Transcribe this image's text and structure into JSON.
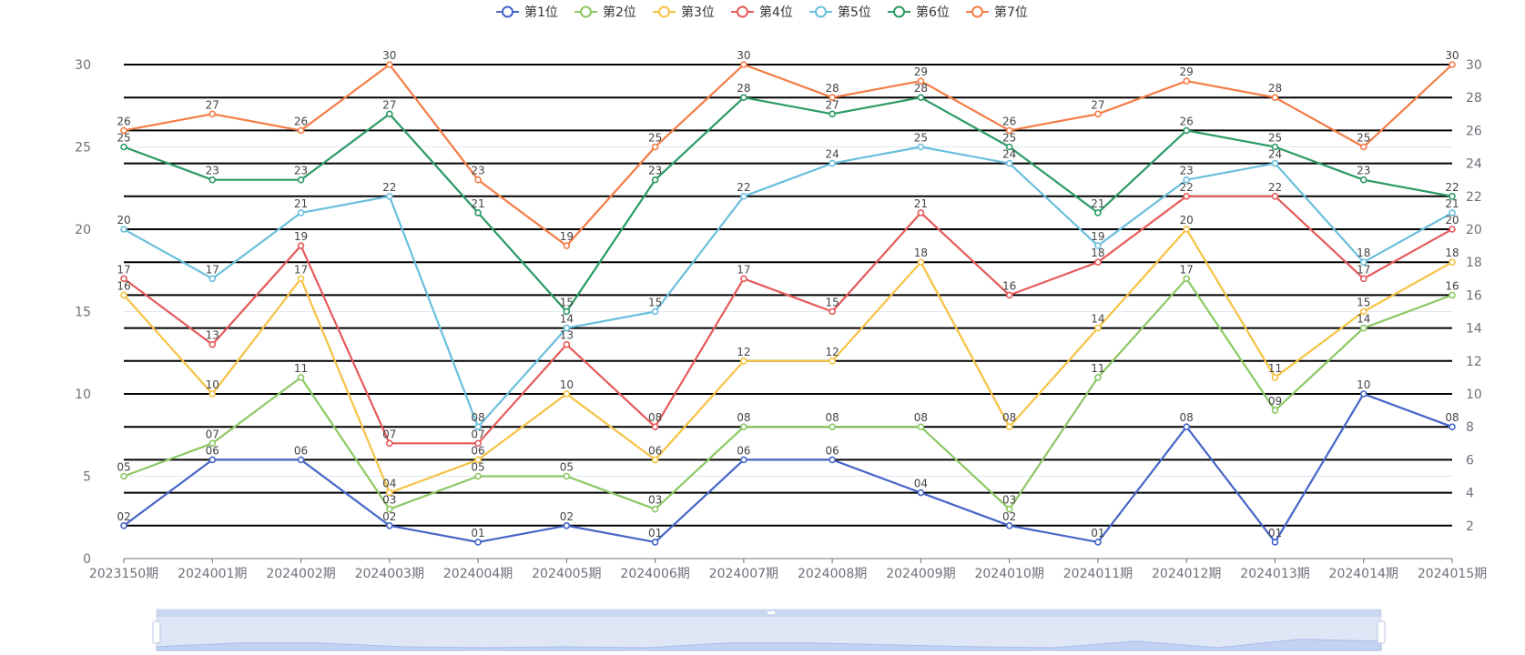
{
  "chart_data": {
    "type": "line",
    "categories": [
      "2023150期",
      "2024001期",
      "2024002期",
      "2024003期",
      "2024004期",
      "2024005期",
      "2024006期",
      "2024007期",
      "2024008期",
      "2024009期",
      "2024010期",
      "2024011期",
      "2024012期",
      "2024013期",
      "2024014期",
      "2024015期"
    ],
    "series": [
      {
        "name": "第1位",
        "color": "#4565c7",
        "values": [
          2,
          6,
          6,
          2,
          1,
          2,
          1,
          6,
          6,
          4,
          2,
          1,
          8,
          1,
          10,
          8
        ],
        "labels": [
          "02",
          "06",
          "06",
          "02",
          "01",
          "02",
          "01",
          "06",
          "06",
          "04",
          "02",
          "01",
          "08",
          "01",
          "10",
          "08"
        ]
      },
      {
        "name": "第2位",
        "color": "#8cc864",
        "values": [
          5,
          7,
          11,
          3,
          5,
          5,
          3,
          8,
          8,
          8,
          3,
          11,
          17,
          9,
          14,
          16
        ],
        "labels": [
          "05",
          "07",
          "11",
          "03",
          "05",
          "05",
          "03",
          "08",
          "08",
          "08",
          "03",
          "11",
          "17",
          "09",
          "14",
          "16"
        ]
      },
      {
        "name": "第3位",
        "color": "#f6c243",
        "values": [
          16,
          10,
          17,
          4,
          6,
          10,
          6,
          12,
          12,
          18,
          8,
          14,
          20,
          11,
          15,
          18
        ],
        "labels": [
          "16",
          "10",
          "17",
          "04",
          "06",
          "10",
          "06",
          "12",
          "12",
          "18",
          "08",
          "14",
          "20",
          "11",
          "15",
          "18"
        ]
      },
      {
        "name": "第4位",
        "color": "#e65a5a",
        "values": [
          17,
          13,
          19,
          7,
          7,
          13,
          8,
          17,
          15,
          21,
          16,
          18,
          22,
          22,
          17,
          20
        ],
        "labels": [
          "17",
          "13",
          "19",
          "07",
          "07",
          "13",
          "08",
          "17",
          "15",
          "21",
          "16",
          "18",
          "22",
          "22",
          "17",
          "20"
        ]
      },
      {
        "name": "第5位",
        "color": "#6abfdd",
        "values": [
          20,
          17,
          21,
          22,
          8,
          14,
          15,
          22,
          24,
          25,
          24,
          19,
          23,
          24,
          18,
          21
        ],
        "labels": [
          "20",
          "17",
          "21",
          "22",
          "08",
          "14",
          "15",
          "22",
          "24",
          "25",
          "24",
          "19",
          "23",
          "24",
          "18",
          "21"
        ]
      },
      {
        "name": "第6位",
        "color": "#2b9a64",
        "values": [
          25,
          23,
          23,
          27,
          21,
          15,
          23,
          28,
          27,
          28,
          25,
          21,
          26,
          25,
          23,
          22
        ],
        "labels": [
          "25",
          "23",
          "23",
          "27",
          "21",
          "15",
          "23",
          "28",
          "27",
          "28",
          "25",
          "21",
          "26",
          "25",
          "23",
          "22"
        ]
      },
      {
        "name": "第7位",
        "color": "#f47c45",
        "values": [
          26,
          27,
          26,
          30,
          23,
          19,
          25,
          30,
          28,
          29,
          26,
          27,
          29,
          28,
          25,
          30
        ],
        "labels": [
          "26",
          "27",
          "26",
          "30",
          "23",
          "19",
          "25",
          "30",
          "28",
          "29",
          "26",
          "27",
          "29",
          "28",
          "25",
          "30"
        ]
      }
    ],
    "y_left": {
      "min": 0,
      "max": 30,
      "ticks": [
        0,
        5,
        10,
        15,
        20,
        25,
        30
      ]
    },
    "y_right": {
      "min": 0,
      "max": 30,
      "ticks": [
        2,
        4,
        6,
        8,
        10,
        12,
        14,
        16,
        18,
        20,
        22,
        24,
        26,
        28,
        30
      ]
    },
    "legend_position": "top-center",
    "dark_gridlines_at": [
      2,
      4,
      6,
      8,
      10,
      12,
      14,
      16,
      18,
      20,
      22,
      24,
      26,
      28,
      30
    ],
    "light_gridlines_at": [
      5,
      15,
      25
    ],
    "has_zoom_slider": true
  }
}
